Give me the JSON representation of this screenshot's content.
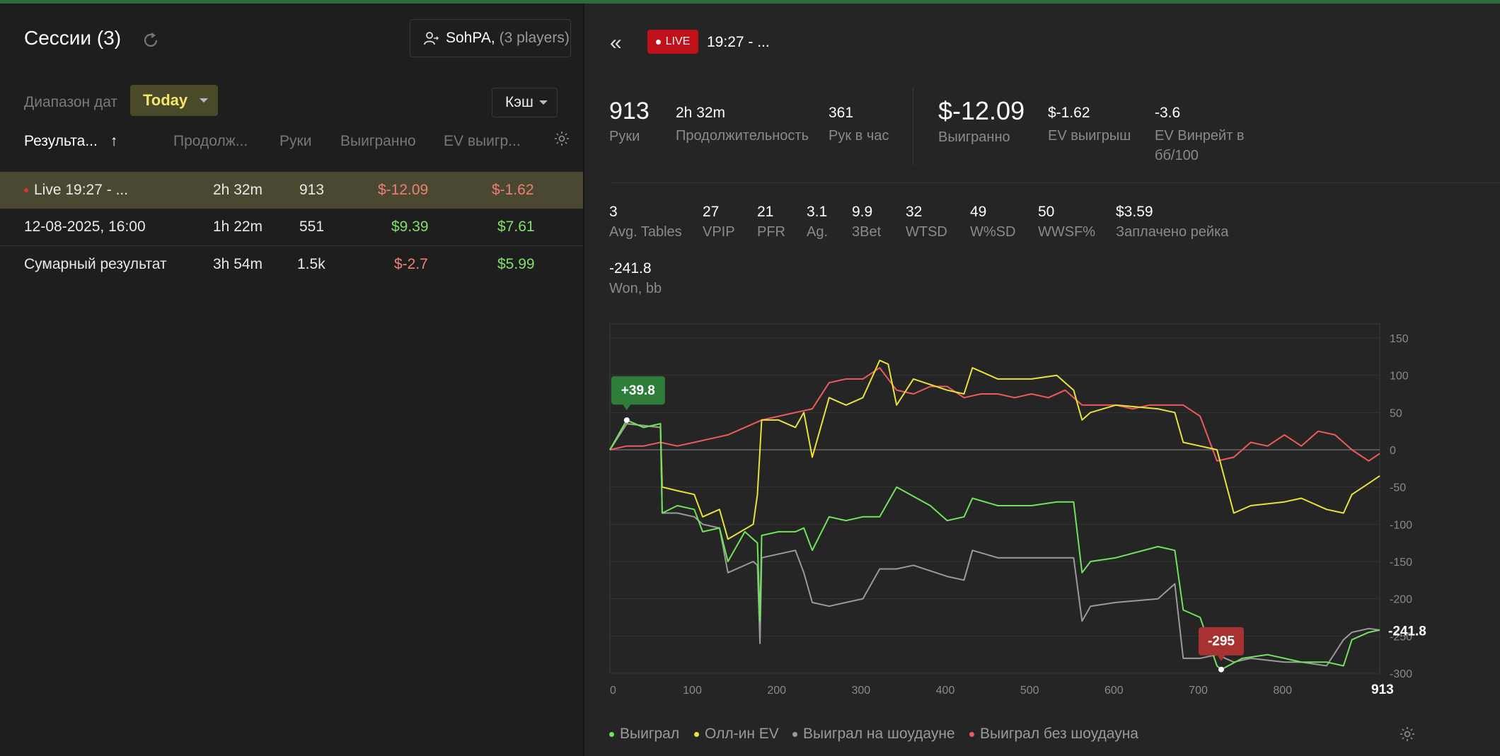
{
  "sessions": {
    "title": "Сессии (3)",
    "player_name": "SohPA,",
    "player_count": "(3 players)",
    "date_range_label": "Диапазон дат",
    "date_range_value": "Today",
    "game_type": "Кэш",
    "columns": [
      "Результа...",
      "Продолж...",
      "Руки",
      "Выигранно",
      "EV выигр..."
    ],
    "sort_arrow": "↑",
    "rows": [
      {
        "name": "Live 19:27 - ...",
        "duration": "2h 32m",
        "hands": "913",
        "won": "$-12.09",
        "ev": "$-1.62",
        "won_color": "red",
        "ev_color": "red"
      },
      {
        "name": "12-08-2025, 16:00",
        "duration": "1h 22m",
        "hands": "551",
        "won": "$9.39",
        "ev": "$7.61",
        "won_color": "green",
        "ev_color": "green"
      },
      {
        "name": "Сумарный результат",
        "duration": "3h 54m",
        "hands": "1.5k",
        "won": "$-2.7",
        "ev": "$5.99",
        "won_color": "red",
        "ev_color": "green"
      }
    ]
  },
  "detail": {
    "back": "«",
    "live_label": "LIVE",
    "title": "19:27 - ...",
    "top_stats": [
      {
        "value": "913",
        "label": "Руки"
      },
      {
        "value": "2h 32m",
        "label": "Продолжительность"
      },
      {
        "value": "361",
        "label": "Рук в час"
      },
      {
        "value": "$-12.09",
        "label": "Выигранно"
      },
      {
        "value": "$-1.62",
        "label": "EV выигрыш"
      },
      {
        "value": "-3.6",
        "label": "EV Винрейт в бб/100"
      }
    ],
    "stats": [
      {
        "value": "3",
        "label": "Avg. Tables"
      },
      {
        "value": "27",
        "label": "VPIP"
      },
      {
        "value": "21",
        "label": "PFR"
      },
      {
        "value": "3.1",
        "label": "Ag."
      },
      {
        "value": "9.9",
        "label": "3Bet"
      },
      {
        "value": "32",
        "label": "WTSD"
      },
      {
        "value": "49",
        "label": "W%SD"
      },
      {
        "value": "50",
        "label": "WWSF%"
      },
      {
        "value": "$3.59",
        "label": "Заплачено рейка"
      },
      {
        "value": "-241.8",
        "label": "Won, bb"
      }
    ]
  },
  "colors": {
    "accent_yellow": "#f4e46a",
    "red": "#ef6a5e",
    "green": "#6fe35a",
    "live": "#c0101a",
    "series_won": "#6fe35a",
    "series_allin": "#e8e23a",
    "series_sd": "#9a9a9a",
    "series_nonsd": "#ef5a5a"
  },
  "chart_data": {
    "type": "line",
    "xlim": [
      0,
      913
    ],
    "ylim": [
      -300,
      150
    ],
    "x_ticks": [
      "0",
      "100",
      "200",
      "300",
      "400",
      "500",
      "600",
      "700",
      "800",
      "913"
    ],
    "y_ticks": [
      "150",
      "100",
      "50",
      "0",
      "-50",
      "-100",
      "-150",
      "-200",
      "-250",
      "-300"
    ],
    "current_value_label": "-241.8",
    "max_label": "+39.8",
    "min_label": "-295",
    "max_point": [
      20,
      39.8
    ],
    "min_point": [
      725,
      -295
    ],
    "series": [
      {
        "name": "Выиграл",
        "color": "#6fe35a",
        "x": [
          0,
          15,
          20,
          40,
          60,
          62,
          80,
          100,
          110,
          130,
          140,
          160,
          175,
          178,
          180,
          200,
          220,
          230,
          240,
          260,
          280,
          300,
          320,
          340,
          380,
          400,
          420,
          430,
          460,
          500,
          530,
          550,
          560,
          570,
          600,
          650,
          670,
          680,
          700,
          720,
          725,
          750,
          780,
          800,
          820,
          850,
          870,
          880,
          900,
          913
        ],
        "y": [
          0,
          30,
          39.8,
          30,
          35,
          -85,
          -75,
          -80,
          -110,
          -105,
          -150,
          -110,
          -125,
          -230,
          -115,
          -110,
          -110,
          -105,
          -135,
          -90,
          -95,
          -90,
          -90,
          -50,
          -75,
          -95,
          -90,
          -65,
          -75,
          -75,
          -70,
          -70,
          -165,
          -150,
          -145,
          -130,
          -135,
          -215,
          -225,
          -290,
          -295,
          -280,
          -275,
          -280,
          -285,
          -285,
          -290,
          -255,
          -245,
          -242
        ]
      },
      {
        "name": "Олл-ин EV",
        "color": "#e8e23a",
        "x": [
          0,
          20,
          60,
          62,
          80,
          100,
          110,
          130,
          140,
          170,
          175,
          180,
          200,
          220,
          230,
          240,
          260,
          280,
          300,
          320,
          330,
          340,
          360,
          400,
          420,
          430,
          460,
          500,
          530,
          550,
          560,
          570,
          600,
          650,
          670,
          680,
          700,
          720,
          740,
          760,
          800,
          820,
          850,
          870,
          880,
          900,
          913
        ],
        "y": [
          0,
          35,
          30,
          -50,
          -55,
          -60,
          -90,
          -80,
          -120,
          -100,
          -60,
          40,
          40,
          30,
          50,
          -10,
          70,
          60,
          70,
          120,
          115,
          60,
          95,
          80,
          75,
          110,
          95,
          95,
          100,
          80,
          40,
          50,
          60,
          55,
          50,
          10,
          5,
          0,
          -85,
          -75,
          -70,
          -65,
          -80,
          -85,
          -60,
          -45,
          -35
        ]
      },
      {
        "name": "Выиграл на шоудауне",
        "color": "#9a9a9a",
        "x": [
          0,
          20,
          60,
          62,
          80,
          100,
          110,
          130,
          140,
          170,
          175,
          178,
          180,
          220,
          230,
          240,
          260,
          280,
          300,
          320,
          340,
          360,
          400,
          420,
          430,
          460,
          500,
          530,
          550,
          560,
          570,
          600,
          650,
          670,
          680,
          700,
          720,
          740,
          760,
          800,
          820,
          850,
          870,
          880,
          900,
          913
        ],
        "y": [
          0,
          35,
          30,
          -85,
          -85,
          -90,
          -100,
          -105,
          -165,
          -150,
          -155,
          -260,
          -145,
          -135,
          -165,
          -205,
          -210,
          -205,
          -200,
          -160,
          -160,
          -155,
          -170,
          -175,
          -135,
          -145,
          -145,
          -145,
          -145,
          -230,
          -210,
          -205,
          -200,
          -180,
          -280,
          -280,
          -275,
          -285,
          -280,
          -285,
          -285,
          -290,
          -255,
          -245,
          -240,
          -242
        ]
      },
      {
        "name": "Выиграл без шоудауна",
        "color": "#ef5a5a",
        "x": [
          0,
          20,
          40,
          60,
          80,
          100,
          120,
          140,
          160,
          180,
          200,
          220,
          240,
          260,
          280,
          300,
          320,
          340,
          360,
          380,
          400,
          420,
          440,
          460,
          480,
          500,
          520,
          540,
          560,
          580,
          600,
          620,
          640,
          660,
          680,
          700,
          720,
          740,
          760,
          780,
          800,
          820,
          840,
          860,
          880,
          900,
          913
        ],
        "y": [
          0,
          5,
          5,
          10,
          5,
          10,
          15,
          20,
          30,
          40,
          45,
          50,
          55,
          90,
          95,
          95,
          110,
          80,
          75,
          85,
          85,
          70,
          75,
          75,
          70,
          75,
          70,
          80,
          60,
          60,
          60,
          55,
          60,
          60,
          60,
          45,
          -15,
          -10,
          10,
          5,
          20,
          5,
          25,
          20,
          0,
          -15,
          -5
        ]
      }
    ]
  }
}
